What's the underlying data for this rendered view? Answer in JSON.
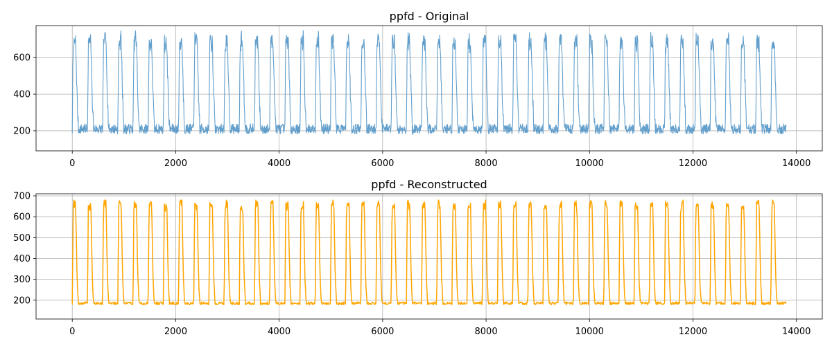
{
  "chart_data": [
    {
      "type": "line",
      "title": "ppfd - Original",
      "xlabel": "",
      "ylabel": "",
      "xlim": [
        -700,
        14500
      ],
      "ylim": [
        90,
        775
      ],
      "xticks": [
        0,
        2000,
        4000,
        6000,
        8000,
        10000,
        12000,
        14000
      ],
      "xtick_labels": [
        "0",
        "2000",
        "4000",
        "6000",
        "8000",
        "10000",
        "12000",
        "14000"
      ],
      "yticks": [
        200,
        400,
        600
      ],
      "ytick_labels": [
        "200",
        "400",
        "600"
      ],
      "grid": true,
      "series": [
        {
          "color": "#5b9ac9",
          "x_start": 0,
          "x_end": 13800,
          "cycles": 47,
          "baseline_range": [
            140,
            280
          ],
          "peak_range": [
            650,
            755
          ],
          "midlevel": 380
        }
      ]
    },
    {
      "type": "line",
      "title": "ppfd - Reconstructed",
      "xlabel": "",
      "ylabel": "",
      "xlim": [
        -700,
        14500
      ],
      "ylim": [
        110,
        710
      ],
      "xticks": [
        0,
        2000,
        4000,
        6000,
        8000,
        10000,
        12000,
        14000
      ],
      "xtick_labels": [
        "0",
        "2000",
        "4000",
        "6000",
        "8000",
        "10000",
        "12000",
        "14000"
      ],
      "yticks": [
        200,
        300,
        400,
        500,
        600,
        700
      ],
      "ytick_labels": [
        "200",
        "300",
        "400",
        "500",
        "600",
        "700"
      ],
      "grid": true,
      "series": [
        {
          "color": "#ffa500",
          "x_start": 0,
          "x_end": 13800,
          "cycles": 47,
          "baseline_range": [
            140,
            230
          ],
          "peak_range": [
            590,
            680
          ],
          "midlevel": 300
        }
      ]
    }
  ]
}
